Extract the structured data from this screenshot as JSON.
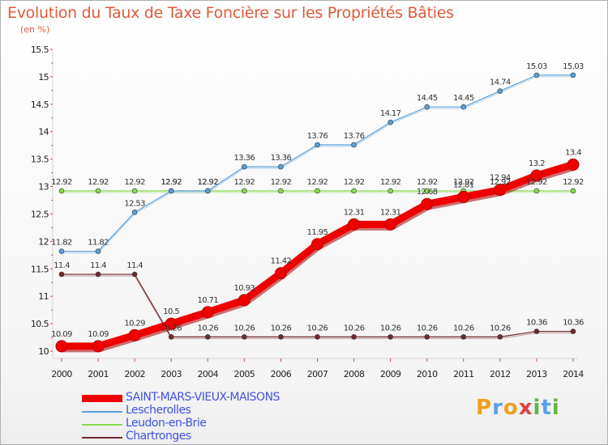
{
  "header": {
    "title": "Evolution du Taux de Taxe Foncière sur les Propriétés Bâties",
    "unit": "(en %)"
  },
  "logo": {
    "text": "Proxiti"
  },
  "chart_data": {
    "type": "line",
    "title": "Evolution du Taux de Taxe Foncière sur les Propriétés Bâties",
    "ylabel": "(en %)",
    "xlabel": "",
    "x": [
      2000,
      2001,
      2002,
      2003,
      2004,
      2005,
      2006,
      2007,
      2008,
      2009,
      2010,
      2011,
      2012,
      2013,
      2014
    ],
    "ylim": [
      10,
      15.5
    ],
    "yticks": [
      10,
      10.5,
      11,
      11.5,
      12,
      12.5,
      13,
      13.5,
      14,
      14.5,
      15,
      15.5
    ],
    "grid": false,
    "legend_position": "bottom-left",
    "series": [
      {
        "name": "SAINT-MARS-VIEUX-MAISONS",
        "color": "#ee0000",
        "values": [
          10.09,
          10.09,
          10.29,
          10.5,
          10.71,
          10.93,
          11.42,
          11.95,
          12.31,
          12.31,
          12.68,
          12.81,
          12.94,
          13.2,
          13.4
        ],
        "labels": [
          "10.09",
          "10.09",
          "10.29",
          "10.5",
          "10.71",
          "10.93",
          "11.42",
          "11.95",
          "12.31",
          "12.31",
          "12.68",
          "12.81",
          "12.94",
          "13.2",
          "13.4"
        ]
      },
      {
        "name": "Lescherolles",
        "color": "#5a9fd8",
        "values": [
          11.82,
          11.82,
          12.53,
          12.92,
          12.92,
          13.36,
          13.36,
          13.76,
          13.76,
          14.17,
          14.45,
          14.45,
          14.74,
          15.03,
          15.03
        ],
        "labels": [
          "11.82",
          "11.82",
          "12.53",
          "12.92",
          "12.92",
          "13.36",
          "13.36",
          "13.76",
          "13.76",
          "14.17",
          "14.45",
          "14.45",
          "14.74",
          "15.03",
          "15.03"
        ]
      },
      {
        "name": "Leudon-en-Brie",
        "color": "#88d850",
        "values": [
          12.92,
          12.92,
          12.92,
          12.92,
          12.92,
          12.92,
          12.92,
          12.92,
          12.92,
          12.92,
          12.92,
          12.92,
          12.92,
          12.92,
          12.92
        ],
        "labels": [
          "12.92",
          "12.92",
          "12.92",
          "12.92",
          "12.92",
          "12.92",
          "12.92",
          "12.92",
          "12.92",
          "12.92",
          "12.92",
          "12.92",
          "12.92",
          "12.92",
          "12.92"
        ]
      },
      {
        "name": "Chartronges",
        "color": "#6e2a2a",
        "values": [
          11.4,
          11.4,
          11.4,
          10.26,
          10.26,
          10.26,
          10.26,
          10.26,
          10.26,
          10.26,
          10.26,
          10.26,
          10.26,
          10.36,
          10.36
        ],
        "labels": [
          "11.4",
          "11.4",
          "11.4",
          "10.26",
          "10.26",
          "10.26",
          "10.26",
          "10.26",
          "10.26",
          "10.26",
          "10.26",
          "10.26",
          "10.26",
          "10.36",
          "10.36"
        ]
      }
    ]
  }
}
